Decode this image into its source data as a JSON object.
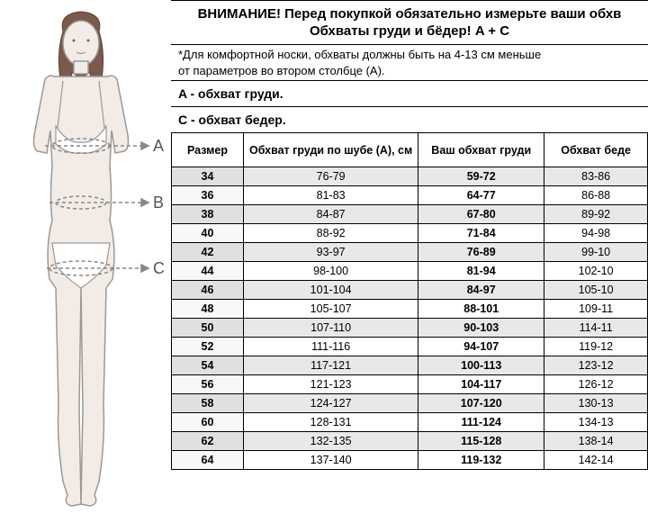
{
  "header": {
    "title1": "ВНИМАНИЕ! Перед покупкой обязательно измерьте ваши обхв",
    "title2": "Обхваты груди и бёдер! A + C",
    "note1": "*Для комфортной носки, обхваты должны быть на 4-13 см меньше",
    "note2": "от параметров во втором столбце (А)."
  },
  "sections": {
    "a_label": "A - обхват груди.",
    "c_label": "C - обхват бедер."
  },
  "measure_labels": {
    "a": "A",
    "b": "B",
    "c": "C"
  },
  "table": {
    "columns": [
      "Размер",
      "Обхват груди по шубе (А), см",
      "Ваш обхват груди",
      "Обхват беде"
    ],
    "col_widths": [
      "80px",
      "155px",
      "140px",
      "auto"
    ],
    "rows": [
      [
        "34",
        "76-79",
        "59-72",
        "83-86"
      ],
      [
        "36",
        "81-83",
        "64-77",
        "86-88"
      ],
      [
        "38",
        "84-87",
        "67-80",
        "89-92"
      ],
      [
        "40",
        "88-92",
        "71-84",
        "94-98"
      ],
      [
        "42",
        "93-97",
        "76-89",
        "99-10"
      ],
      [
        "44",
        "98-100",
        "81-94",
        "102-10"
      ],
      [
        "46",
        "101-104",
        "84-97",
        "105-10"
      ],
      [
        "48",
        "105-107",
        "88-101",
        "109-11"
      ],
      [
        "50",
        "107-110",
        "90-103",
        "114-11"
      ],
      [
        "52",
        "111-116",
        "94-107",
        "119-12"
      ],
      [
        "54",
        "117-121",
        "100-113",
        "123-12"
      ],
      [
        "56",
        "121-123",
        "104-117",
        "126-12"
      ],
      [
        "58",
        "124-127",
        "107-120",
        "130-13"
      ],
      [
        "60",
        "128-131",
        "111-124",
        "134-13"
      ],
      [
        "62",
        "132-135",
        "115-128",
        "138-14"
      ],
      [
        "64",
        "137-140",
        "119-132",
        "142-14"
      ]
    ],
    "bold_cols": [
      0,
      2
    ]
  },
  "colors": {
    "skin": "#f3ece6",
    "outline": "#999999",
    "hair": "#7a5a4a",
    "row_alt": "#e8e8e8",
    "border": "#000000",
    "measure": "#888888"
  }
}
